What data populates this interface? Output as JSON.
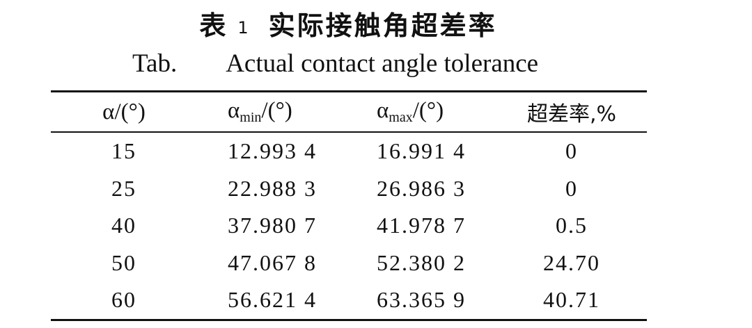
{
  "caption": {
    "cn_label": "表",
    "cn_number": "1",
    "cn_title": "实际接触角超差率",
    "en_label": "Tab.",
    "en_title": "Actual contact angle tolerance"
  },
  "table": {
    "headers": {
      "col1": "α/(°)",
      "col2_symbol": "α",
      "col2_sub": "min",
      "col2_unit": "/(°)",
      "col3_symbol": "α",
      "col3_sub": "max",
      "col3_unit": "/(°)",
      "col4": "超差率,%"
    },
    "rows": [
      [
        "15",
        "12.993 4",
        "16.991 4",
        "0"
      ],
      [
        "25",
        "22.988 3",
        "26.986 3",
        "0"
      ],
      [
        "40",
        "37.980 7",
        "41.978 7",
        "0.5"
      ],
      [
        "50",
        "47.067 8",
        "52.380 2",
        "24.70"
      ],
      [
        "60",
        "56.621 4",
        "63.365 9",
        "40.71"
      ]
    ]
  }
}
